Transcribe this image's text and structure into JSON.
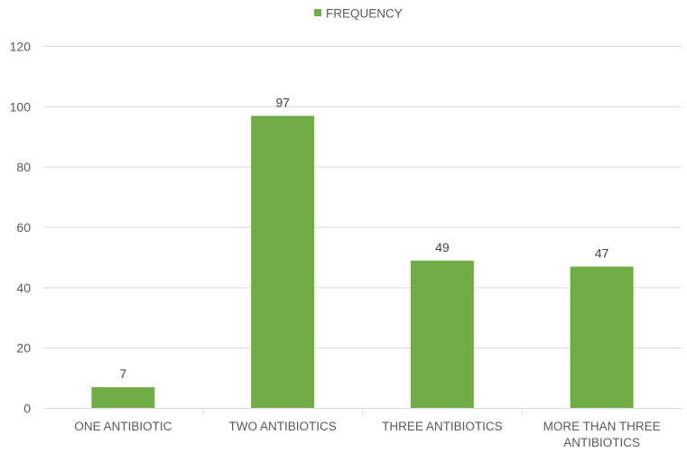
{
  "chart_data": {
    "type": "bar",
    "categories": [
      [
        "ONE ANTIBIOTIC"
      ],
      [
        "TWO ANTIBIOTICS"
      ],
      [
        "THREE ANTIBIOTICS"
      ],
      [
        "MORE THAN THREE",
        "ANTIBIOTICS"
      ]
    ],
    "series": [
      {
        "name": "FREQUENCY",
        "values": [
          7,
          97,
          49,
          47
        ],
        "color": "#70ad47"
      }
    ],
    "ylim": [
      0,
      120
    ],
    "yticks": [
      0,
      20,
      40,
      60,
      80,
      100,
      120
    ],
    "grid": true,
    "legend_position": "top",
    "data_labels": [
      "7",
      "97",
      "49",
      "47"
    ]
  }
}
